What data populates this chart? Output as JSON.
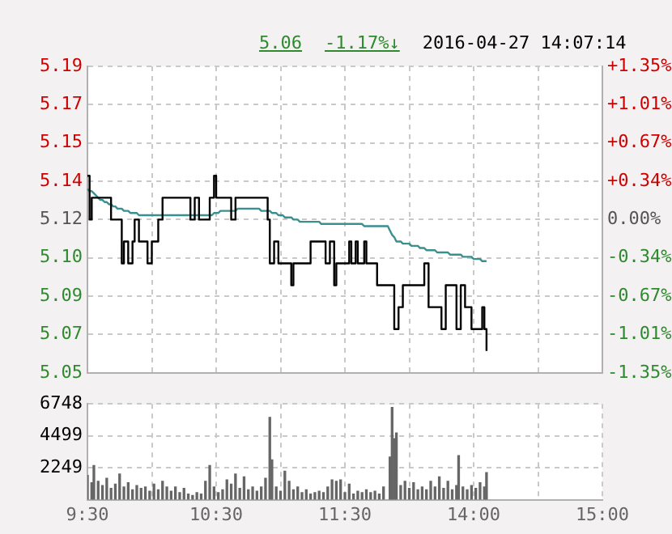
{
  "chart_data": [
    {
      "type": "step",
      "annotations": [
        "5.06",
        "-1.17%↓",
        "2016-04-27 14:07:14"
      ],
      "categories": [
        null,
        null,
        null,
        null,
        null,
        null,
        null,
        null,
        null,
        null,
        null,
        null,
        null,
        null,
        null,
        null,
        null,
        null,
        null,
        null,
        null,
        null,
        null,
        null,
        null,
        null,
        null,
        null,
        null,
        null,
        null,
        null,
        null,
        null,
        null,
        null,
        null,
        null,
        null,
        null,
        null,
        null,
        null,
        null,
        null,
        null,
        null,
        null,
        null,
        null,
        null,
        null,
        null,
        null,
        null,
        null,
        null,
        null,
        null,
        null,
        null,
        null,
        null,
        null,
        null,
        null,
        null,
        null,
        null,
        null,
        null,
        null,
        null,
        null,
        null,
        null,
        null,
        null,
        null,
        null,
        null,
        null,
        null,
        null,
        null,
        null,
        null,
        null,
        null,
        null,
        null,
        null,
        null,
        null,
        null,
        null,
        null,
        null,
        null,
        null,
        null,
        null,
        null,
        null,
        null,
        null,
        null,
        null,
        null,
        null,
        null,
        null,
        null,
        null,
        null,
        null,
        null,
        null,
        null,
        null,
        null,
        null,
        null,
        null,
        null,
        null,
        null,
        null,
        null,
        null,
        null,
        null,
        null,
        null,
        null,
        null,
        null,
        null,
        null,
        null,
        null,
        null,
        null,
        null,
        null,
        null,
        null,
        null,
        null,
        null,
        null,
        null,
        null,
        null,
        null,
        null,
        null,
        null,
        null,
        null,
        null,
        null,
        null,
        null,
        null,
        null,
        null,
        null,
        null,
        null,
        null,
        null,
        null,
        null,
        null,
        null,
        null,
        null,
        null,
        null,
        null,
        null,
        null,
        null,
        null,
        null,
        null,
        null,
        null,
        null,
        null,
        null,
        null,
        null,
        null,
        null,
        null,
        null,
        null,
        null,
        null,
        null,
        null,
        null,
        null,
        null,
        null,
        null,
        null,
        null,
        null,
        null,
        null,
        null,
        null,
        null,
        null,
        null,
        null,
        null,
        null,
        null,
        null,
        null,
        null,
        null,
        null,
        null,
        null,
        null,
        null,
        null,
        null,
        null,
        null,
        null,
        null,
        null,
        null,
        null,
        null
      ],
      "series": [
        {
          "color": "#000000",
          "values": [
            5.14,
            5.12,
            5.13,
            5.13,
            5.13,
            5.13,
            5.13,
            5.13,
            5.13,
            5.13,
            5.13,
            5.12,
            5.12,
            5.12,
            5.12,
            5.12,
            5.1,
            5.11,
            5.11,
            5.1,
            5.1,
            5.11,
            5.12,
            5.12,
            5.11,
            5.11,
            5.11,
            5.11,
            5.1,
            5.1,
            5.11,
            5.11,
            5.11,
            5.12,
            5.12,
            5.13,
            5.13,
            5.13,
            5.13,
            5.13,
            5.13,
            5.13,
            5.13,
            5.13,
            5.13,
            5.13,
            5.13,
            5.13,
            5.12,
            5.12,
            5.13,
            5.13,
            5.12,
            5.12,
            5.12,
            5.12,
            5.12,
            5.13,
            5.13,
            5.14,
            5.13,
            5.13,
            5.13,
            5.13,
            5.13,
            5.13,
            5.13,
            5.12,
            5.12,
            5.13,
            5.13,
            5.13,
            5.13,
            5.13,
            5.13,
            5.13,
            5.13,
            5.13,
            5.13,
            5.13,
            5.13,
            5.13,
            5.13,
            5.13,
            5.12,
            5.1,
            5.1,
            5.11,
            5.11,
            5.1,
            5.1,
            5.1,
            5.1,
            5.1,
            5.1,
            5.09,
            5.1,
            5.1,
            5.1,
            5.1,
            5.1,
            5.1,
            5.1,
            5.1,
            5.11,
            5.11,
            5.11,
            5.11,
            5.11,
            5.11,
            5.11,
            5.1,
            5.1,
            5.11,
            5.11,
            5.09,
            5.1,
            5.1,
            5.1,
            5.1,
            5.1,
            5.1,
            5.11,
            5.1,
            5.1,
            5.11,
            5.1,
            5.1,
            5.1,
            5.11,
            5.1,
            5.1,
            5.1,
            5.1,
            5.1,
            5.09,
            5.09,
            5.09,
            5.09,
            5.09,
            5.09,
            5.09,
            5.09,
            5.07,
            5.07,
            5.08,
            5.08,
            5.09,
            5.09,
            5.09,
            5.09,
            5.09,
            5.09,
            5.09,
            5.09,
            5.09,
            5.09,
            5.1,
            5.1,
            5.08,
            5.08,
            5.08,
            5.08,
            5.08,
            5.08,
            5.07,
            5.07,
            5.09,
            5.09,
            5.09,
            5.09,
            5.09,
            5.07,
            5.07,
            5.09,
            5.09,
            5.08,
            5.08,
            5.08,
            5.07,
            5.07,
            5.07,
            5.07,
            5.07,
            5.08,
            5.07,
            5.06,
            null,
            null,
            null,
            null,
            null,
            null,
            null,
            null,
            null,
            null,
            null,
            null,
            null,
            null,
            null,
            null,
            null,
            null,
            null,
            null,
            null,
            null,
            null,
            null,
            null,
            null,
            null,
            null,
            null,
            null,
            null,
            null,
            null,
            null,
            null,
            null,
            null,
            null,
            null,
            null,
            null,
            null,
            null,
            null,
            null,
            null,
            null,
            null,
            null,
            null,
            null,
            null,
            null,
            null
          ]
        },
        {
          "type": "line",
          "color": "#3a8f8f",
          "values": [
            5.134,
            5.133,
            5.133,
            5.132,
            5.131,
            5.13,
            5.129,
            5.129,
            5.128,
            5.128,
            5.127,
            5.127,
            5.126,
            5.126,
            5.125,
            5.125,
            5.125,
            5.124,
            5.124,
            5.124,
            5.123,
            5.123,
            5.123,
            5.123,
            5.122,
            5.122,
            5.122,
            5.122,
            5.122,
            5.122,
            5.122,
            5.122,
            5.122,
            5.122,
            5.122,
            5.122,
            5.122,
            5.122,
            5.122,
            5.122,
            5.122,
            5.122,
            5.122,
            5.122,
            5.122,
            5.122,
            5.122,
            5.122,
            5.122,
            5.122,
            5.122,
            5.122,
            5.122,
            5.122,
            5.122,
            5.122,
            5.122,
            5.122,
            5.122,
            5.123,
            5.123,
            5.123,
            5.124,
            5.124,
            5.124,
            5.124,
            5.124,
            5.124,
            5.124,
            5.124,
            5.125,
            5.125,
            5.125,
            5.125,
            5.125,
            5.125,
            5.125,
            5.125,
            5.125,
            5.125,
            5.125,
            5.124,
            5.124,
            5.124,
            5.124,
            5.124,
            5.123,
            5.123,
            5.123,
            5.122,
            5.122,
            5.122,
            5.121,
            5.121,
            5.121,
            5.121,
            5.12,
            5.12,
            5.12,
            5.119,
            5.119,
            5.119,
            5.119,
            5.119,
            5.119,
            5.119,
            5.119,
            5.119,
            5.119,
            5.118,
            5.118,
            5.118,
            5.118,
            5.118,
            5.118,
            5.118,
            5.118,
            5.118,
            5.118,
            5.118,
            5.118,
            5.118,
            5.118,
            5.118,
            5.118,
            5.118,
            5.118,
            5.118,
            5.118,
            5.117,
            5.117,
            5.117,
            5.117,
            5.117,
            5.117,
            5.117,
            5.117,
            5.117,
            5.117,
            5.117,
            5.117,
            5.115,
            5.113,
            5.112,
            5.11,
            5.11,
            5.11,
            5.109,
            5.109,
            5.109,
            5.109,
            5.108,
            5.108,
            5.108,
            5.108,
            5.107,
            5.107,
            5.107,
            5.106,
            5.106,
            5.106,
            5.106,
            5.106,
            5.105,
            5.105,
            5.105,
            5.105,
            5.105,
            5.105,
            5.104,
            5.104,
            5.104,
            5.104,
            5.104,
            5.104,
            5.103,
            5.103,
            5.103,
            5.103,
            5.103,
            5.102,
            5.102,
            5.102,
            5.102,
            5.101,
            5.101,
            5.101,
            null,
            null,
            null,
            null,
            null,
            null,
            null,
            null,
            null,
            null,
            null,
            null,
            null,
            null,
            null,
            null,
            null,
            null,
            null,
            null,
            null,
            null,
            null,
            null,
            null,
            null,
            null,
            null,
            null,
            null,
            null,
            null,
            null,
            null,
            null,
            null,
            null,
            null,
            null,
            null,
            null,
            null,
            null,
            null,
            null,
            null,
            null,
            null,
            null,
            null,
            null,
            null,
            null,
            null
          ]
        }
      ],
      "ylim": [
        5.05,
        5.19
      ],
      "yticks": [
        {
          "value": 5.05,
          "label": "5.05"
        },
        {
          "value": 5.0675,
          "label": "5.07"
        },
        {
          "value": 5.085,
          "label": "5.09"
        },
        {
          "value": 5.1025,
          "label": "5.10"
        },
        {
          "value": 5.12,
          "label": "5.12"
        },
        {
          "value": 5.1375,
          "label": "5.14"
        },
        {
          "value": 5.155,
          "label": "5.15"
        },
        {
          "value": 5.1725,
          "label": "5.17"
        },
        {
          "value": 5.19,
          "label": "5.19"
        }
      ],
      "y2lim": [
        -1.35,
        1.35
      ],
      "y2ticks": [
        {
          "value": -1.35,
          "label": "-1.35%"
        },
        {
          "value": -1.0125,
          "label": "-1.01%"
        },
        {
          "value": -0.675,
          "label": "-0.67%"
        },
        {
          "value": -0.3375,
          "label": "-0.34%"
        },
        {
          "value": 0,
          "label": "0.00%"
        },
        {
          "value": 0.3375,
          "label": "+0.34%"
        },
        {
          "value": 0.675,
          "label": "+0.67%"
        },
        {
          "value": 1.0125,
          "label": "+1.01%"
        },
        {
          "value": 1.35,
          "label": "+1.35%"
        }
      ],
      "tick_labels": "y",
      "grid": true,
      "marker": "none",
      "line_style": "solid"
    },
    {
      "type": "bar",
      "color": "#666666",
      "categories": [
        "9:30",
        null,
        null,
        null,
        null,
        null,
        null,
        null,
        null,
        null,
        null,
        null,
        null,
        null,
        null,
        null,
        null,
        null,
        null,
        null,
        null,
        null,
        null,
        null,
        null,
        null,
        null,
        null,
        null,
        null,
        null,
        null,
        null,
        null,
        null,
        null,
        null,
        null,
        null,
        null,
        null,
        null,
        null,
        null,
        null,
        null,
        null,
        null,
        null,
        null,
        null,
        null,
        null,
        null,
        null,
        null,
        null,
        null,
        null,
        null,
        "10:30",
        null,
        null,
        null,
        null,
        null,
        null,
        null,
        null,
        null,
        null,
        null,
        null,
        null,
        null,
        null,
        null,
        null,
        null,
        null,
        null,
        null,
        null,
        null,
        null,
        null,
        null,
        null,
        null,
        null,
        null,
        null,
        null,
        null,
        null,
        null,
        null,
        null,
        null,
        null,
        null,
        null,
        null,
        null,
        null,
        null,
        null,
        null,
        null,
        null,
        null,
        null,
        null,
        null,
        null,
        null,
        null,
        null,
        null,
        null,
        "11:30",
        null,
        null,
        null,
        null,
        null,
        null,
        null,
        null,
        null,
        null,
        null,
        null,
        null,
        null,
        null,
        null,
        null,
        null,
        null,
        null,
        null,
        null,
        null,
        null,
        null,
        null,
        null,
        null,
        null,
        null,
        null,
        null,
        null,
        null,
        null,
        null,
        null,
        null,
        null,
        null,
        null,
        null,
        null,
        null,
        null,
        null,
        null,
        null,
        null,
        null,
        null,
        null,
        null,
        null,
        null,
        null,
        null,
        null,
        null,
        "14:00",
        null,
        null,
        null,
        null,
        null,
        null,
        null,
        null,
        null,
        null,
        null,
        null,
        null,
        null,
        null,
        null,
        null,
        null,
        null,
        null,
        null,
        null,
        null,
        null,
        null,
        null,
        null,
        null,
        null,
        null,
        null,
        null,
        null,
        null,
        null,
        null,
        null,
        null,
        null,
        null,
        null,
        null,
        null,
        null,
        null,
        null,
        null,
        null,
        null,
        null,
        null,
        null,
        null,
        null,
        null,
        null,
        null,
        null,
        null,
        "15:00"
      ],
      "values": [
        1700,
        null,
        1200,
        2400,
        null,
        1300,
        null,
        1000,
        null,
        1500,
        null,
        800,
        null,
        1100,
        null,
        1800,
        null,
        900,
        null,
        1200,
        null,
        700,
        null,
        1000,
        null,
        800,
        null,
        900,
        null,
        600,
        null,
        1100,
        null,
        700,
        null,
        1300,
        null,
        900,
        null,
        600,
        null,
        900,
        null,
        500,
        null,
        800,
        null,
        400,
        null,
        300,
        null,
        500,
        null,
        400,
        null,
        1300,
        null,
        2400,
        null,
        900,
        null,
        500,
        null,
        700,
        null,
        1400,
        null,
        1100,
        null,
        1800,
        null,
        800,
        null,
        1600,
        null,
        700,
        null,
        900,
        null,
        600,
        null,
        900,
        null,
        1500,
        null,
        5800,
        2800,
        null,
        900,
        null,
        600,
        null,
        2000,
        null,
        1300,
        null,
        700,
        null,
        900,
        null,
        500,
        null,
        700,
        null,
        400,
        null,
        500,
        null,
        600,
        null,
        500,
        null,
        900,
        null,
        1400,
        null,
        1300,
        null,
        1400,
        null,
        500,
        null,
        1100,
        null,
        400,
        null,
        600,
        null,
        500,
        null,
        700,
        null,
        500,
        null,
        600,
        null,
        400,
        null,
        900,
        null,
        null,
        3000,
        6500,
        4300,
        4700,
        null,
        1000,
        null,
        1300,
        null,
        800,
        null,
        1200,
        null,
        700,
        null,
        900,
        null,
        700,
        null,
        1300,
        null,
        900,
        null,
        1600,
        null,
        800,
        null,
        1300,
        null,
        700,
        null,
        1000,
        3100,
        null,
        900,
        null,
        700,
        null,
        1000,
        null,
        800,
        null,
        1200,
        null,
        900,
        1900,
        null,
        null,
        null,
        null,
        null,
        null,
        null,
        null,
        null,
        null,
        null,
        null,
        null,
        null,
        null,
        null,
        null,
        null,
        null,
        null,
        null,
        null,
        null,
        null,
        null,
        null,
        null,
        null,
        null,
        null,
        null,
        null,
        null,
        null,
        null,
        null,
        null,
        null,
        null,
        null,
        null,
        null,
        null,
        null,
        null,
        null,
        null,
        null,
        null,
        null,
        null,
        null,
        null,
        null
      ],
      "ylim": [
        0,
        6748
      ],
      "yticks": [
        2249,
        4499,
        6748
      ],
      "grid": true
    }
  ]
}
